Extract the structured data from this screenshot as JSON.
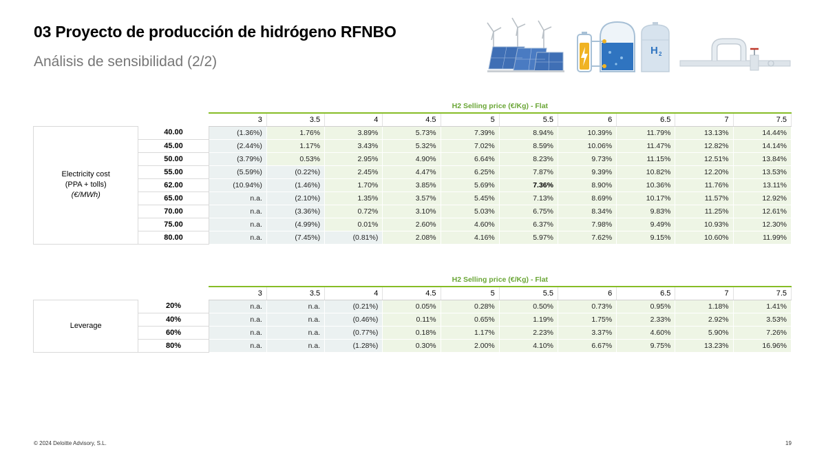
{
  "header": {
    "title": "03  Proyecto de producción de hidrógeno RFNBO",
    "subtitle": "Análisis de sensibilidad (2/2)"
  },
  "illustration": {
    "icons": [
      "wind-turbine-icon",
      "solar-panel-icon",
      "battery-icon",
      "electrolyzer-icon",
      "hydrogen-tank-icon",
      "pipeline-icon"
    ],
    "tank_label": "H",
    "tank_label_sub": "2"
  },
  "table1": {
    "header_title": "H2 Selling price (€/Kg) - Flat",
    "columns": [
      "3",
      "3.5",
      "4",
      "4.5",
      "5",
      "5.5",
      "6",
      "6.5",
      "7",
      "7.5"
    ],
    "category_line1": "Electricity cost",
    "category_line2": "(PPA + tolls)",
    "category_unit": "(€/MWh)",
    "rows": [
      {
        "label": "40.00",
        "values": [
          "(1.36%)",
          "1.76%",
          "3.89%",
          "5.73%",
          "7.39%",
          "8.94%",
          "10.39%",
          "11.79%",
          "13.13%",
          "14.44%"
        ]
      },
      {
        "label": "45.00",
        "values": [
          "(2.44%)",
          "1.17%",
          "3.43%",
          "5.32%",
          "7.02%",
          "8.59%",
          "10.06%",
          "11.47%",
          "12.82%",
          "14.14%"
        ]
      },
      {
        "label": "50.00",
        "values": [
          "(3.79%)",
          "0.53%",
          "2.95%",
          "4.90%",
          "6.64%",
          "8.23%",
          "9.73%",
          "11.15%",
          "12.51%",
          "13.84%"
        ]
      },
      {
        "label": "55.00",
        "values": [
          "(5.59%)",
          "(0.22%)",
          "2.45%",
          "4.47%",
          "6.25%",
          "7.87%",
          "9.39%",
          "10.82%",
          "12.20%",
          "13.53%"
        ]
      },
      {
        "label": "62.00",
        "values": [
          "(10.94%)",
          "(1.46%)",
          "1.70%",
          "3.85%",
          "5.69%",
          "7.36%",
          "8.90%",
          "10.36%",
          "11.76%",
          "13.11%"
        ]
      },
      {
        "label": "65.00",
        "values": [
          "n.a.",
          "(2.10%)",
          "1.35%",
          "3.57%",
          "5.45%",
          "7.13%",
          "8.69%",
          "10.17%",
          "11.57%",
          "12.92%"
        ]
      },
      {
        "label": "70.00",
        "values": [
          "n.a.",
          "(3.36%)",
          "0.72%",
          "3.10%",
          "5.03%",
          "6.75%",
          "8.34%",
          "9.83%",
          "11.25%",
          "12.61%"
        ]
      },
      {
        "label": "75.00",
        "values": [
          "n.a.",
          "(4.99%)",
          "0.01%",
          "2.60%",
          "4.60%",
          "6.37%",
          "7.98%",
          "9.49%",
          "10.93%",
          "12.30%"
        ]
      },
      {
        "label": "80.00",
        "values": [
          "n.a.",
          "(7.45%)",
          "(0.81%)",
          "2.08%",
          "4.16%",
          "5.97%",
          "7.62%",
          "9.15%",
          "10.60%",
          "11.99%"
        ]
      }
    ],
    "highlight": {
      "row": 4,
      "col": 5
    }
  },
  "table2": {
    "header_title": "H2 Selling price (€/Kg) - Flat",
    "columns": [
      "3",
      "3.5",
      "4",
      "4.5",
      "5",
      "5.5",
      "6",
      "6.5",
      "7",
      "7.5"
    ],
    "category_line1": "Leverage",
    "rows": [
      {
        "label": "20%",
        "values": [
          "n.a.",
          "n.a.",
          "(0.21%)",
          "0.05%",
          "0.28%",
          "0.50%",
          "0.73%",
          "0.95%",
          "1.18%",
          "1.41%"
        ]
      },
      {
        "label": "40%",
        "values": [
          "n.a.",
          "n.a.",
          "(0.46%)",
          "0.11%",
          "0.65%",
          "1.19%",
          "1.75%",
          "2.33%",
          "2.92%",
          "3.53%"
        ]
      },
      {
        "label": "60%",
        "values": [
          "n.a.",
          "n.a.",
          "(0.77%)",
          "0.18%",
          "1.17%",
          "2.23%",
          "3.37%",
          "4.60%",
          "5.90%",
          "7.26%"
        ]
      },
      {
        "label": "80%",
        "values": [
          "n.a.",
          "n.a.",
          "(1.28%)",
          "0.30%",
          "2.00%",
          "4.10%",
          "6.67%",
          "9.75%",
          "13.23%",
          "16.96%"
        ]
      }
    ]
  },
  "footer": {
    "copyright": "© 2024 Deloitte Advisory, S.L.",
    "page_number": "19"
  },
  "colors": {
    "accent_green": "#86bc25",
    "header_green": "#6aa636",
    "negative_fill": "#ebf1f1",
    "positive_fill": "#eef5e5"
  }
}
